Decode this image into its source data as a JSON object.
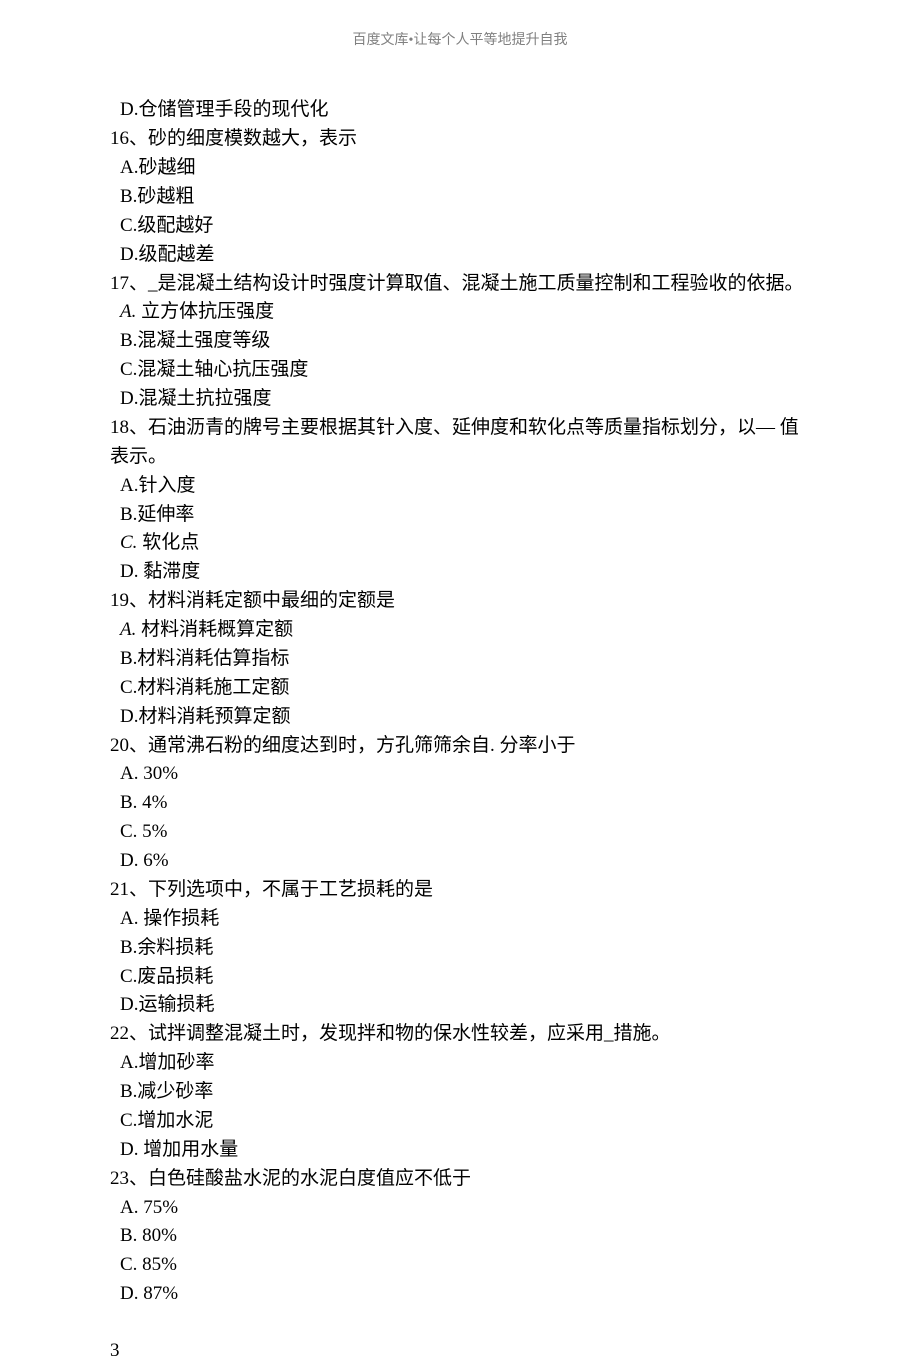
{
  "header": "百度文库•让每个人平等地提升自我",
  "lines": [
    {
      "cls": "opt-line",
      "text": "D.仓储管理手段的现代化"
    },
    {
      "cls": "q-line",
      "text": "16、砂的细度模数越大，表示"
    },
    {
      "cls": "opt-line",
      "text": "A.砂越细"
    },
    {
      "cls": "opt-line",
      "text": "B.砂越粗"
    },
    {
      "cls": "opt-line",
      "text": "C.级配越好"
    },
    {
      "cls": "opt-line",
      "text": "D.级配越差"
    },
    {
      "cls": "q-line",
      "text": "17、_是混凝土结构设计时强度计算取值、混凝土施工质量控制和工程验收的依据。"
    },
    {
      "cls": "opt-line",
      "text": "A. 立方体抗压强度",
      "italic_prefix": "A."
    },
    {
      "cls": "opt-line",
      "text": "B.混凝土强度等级"
    },
    {
      "cls": "opt-line",
      "text": "C.混凝土轴心抗压强度"
    },
    {
      "cls": "opt-line",
      "text": "D.混凝土抗拉强度"
    },
    {
      "cls": "q-line",
      "text": "18、石油沥青的牌号主要根据其针入度、延伸度和软化点等质量指标划分，以— 值表示。"
    },
    {
      "cls": "opt-line",
      "text": "A.针入度"
    },
    {
      "cls": "opt-line",
      "text": "B.延伸率"
    },
    {
      "cls": "opt-line",
      "text": "C. 软化点",
      "italic_prefix": "C."
    },
    {
      "cls": "opt-line",
      "text": "D. 黏滞度"
    },
    {
      "cls": "q-line",
      "text": "19、材料消耗定额中最细的定额是"
    },
    {
      "cls": "opt-line",
      "text": "A. 材料消耗概算定额",
      "italic_prefix": "A."
    },
    {
      "cls": "opt-line",
      "text": "B.材料消耗估算指标"
    },
    {
      "cls": "opt-line",
      "text": "C.材料消耗施工定额"
    },
    {
      "cls": "opt-line",
      "text": "D.材料消耗预算定额"
    },
    {
      "cls": "q-line",
      "text": "20、通常沸石粉的细度达到时，方孔筛筛余自. 分率小于"
    },
    {
      "cls": "opt-line",
      "text": "A.   30%"
    },
    {
      "cls": "opt-line",
      "text": "B.   4%"
    },
    {
      "cls": "opt-line",
      "text": "C.   5%"
    },
    {
      "cls": "opt-line",
      "text": "D.   6%"
    },
    {
      "cls": "q-line",
      "text": "21、下列选项中，不属于工艺损耗的是"
    },
    {
      "cls": "opt-line",
      "text": "A. 操作损耗"
    },
    {
      "cls": "opt-line",
      "text": "B.余料损耗"
    },
    {
      "cls": "opt-line",
      "text": "C.废品损耗"
    },
    {
      "cls": "opt-line",
      "text": "D.运输损耗"
    },
    {
      "cls": "q-line",
      "text": "22、试拌调整混凝土时，发现拌和物的保水性较差，应采用_措施。"
    },
    {
      "cls": "opt-line",
      "text": "A.增加砂率"
    },
    {
      "cls": "opt-line",
      "text": "B.减少砂率"
    },
    {
      "cls": "opt-line",
      "text": "C.增加水泥"
    },
    {
      "cls": "opt-line",
      "text": "D. 增加用水量"
    },
    {
      "cls": "q-line",
      "text": "23、白色硅酸盐水泥的水泥白度值应不低于"
    },
    {
      "cls": "opt-line",
      "text": "A.   75%"
    },
    {
      "cls": "opt-line",
      "text": "B.   80%"
    },
    {
      "cls": "opt-line",
      "text": "C.   85%"
    },
    {
      "cls": "opt-line",
      "text": "D.   87%"
    }
  ],
  "page_number": "3"
}
